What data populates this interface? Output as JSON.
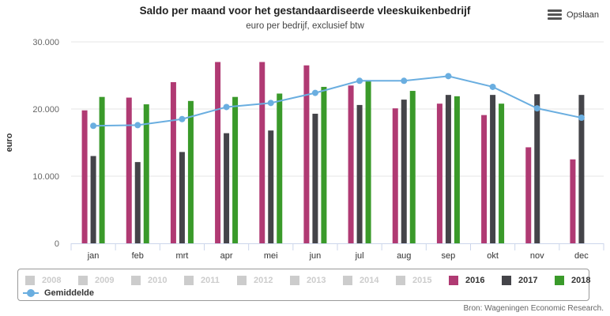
{
  "header": {
    "title": "Saldo per maand voor het gestandaardiseerde vleeskuikenbedrijf",
    "subtitle": "euro per bedrijf, exclusief btw",
    "export_label": "Opslaan",
    "export_icon": "menu-icon"
  },
  "credits": "Bron: Wageningen Economic Research.",
  "chart_data": {
    "type": "bar",
    "ylabel": "euro",
    "xlabel": "",
    "ylim": [
      0,
      30000
    ],
    "yticks": [
      0,
      10000,
      20000,
      30000
    ],
    "ytick_labels": [
      "0",
      "10.000",
      "20.000",
      "30.000"
    ],
    "grid": true,
    "legend_position": "bottom",
    "categories": [
      "jan",
      "feb",
      "mrt",
      "apr",
      "mei",
      "jun",
      "jul",
      "aug",
      "sep",
      "okt",
      "nov",
      "dec"
    ],
    "series": [
      {
        "name": "2016",
        "type": "bar",
        "color": "#b03a73",
        "values": [
          19800,
          21700,
          24000,
          27000,
          27000,
          26500,
          23500,
          20100,
          20800,
          19100,
          14300,
          12500
        ]
      },
      {
        "name": "2017",
        "type": "bar",
        "color": "#444449",
        "values": [
          13000,
          12100,
          13600,
          16400,
          16800,
          19300,
          20600,
          21400,
          22100,
          22100,
          22200,
          22100
        ]
      },
      {
        "name": "2018",
        "type": "bar",
        "color": "#3a9a2a",
        "values": [
          21800,
          20700,
          21200,
          21800,
          22300,
          23300,
          24300,
          22700,
          21900,
          20800,
          null,
          null
        ]
      },
      {
        "name": "Gemiddelde",
        "type": "line",
        "color": "#6aaee0",
        "values": [
          17500,
          17600,
          18500,
          20300,
          20900,
          22400,
          24200,
          24200,
          24900,
          23300,
          20100,
          18700
        ]
      }
    ],
    "legend_inactive": [
      "2008",
      "2009",
      "2010",
      "2011",
      "2012",
      "2013",
      "2014",
      "2015"
    ]
  }
}
